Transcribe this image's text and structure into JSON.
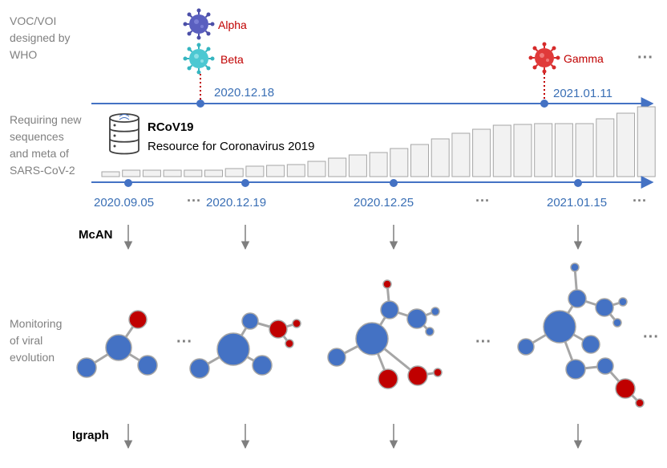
{
  "left_labels": {
    "voc": [
      "VOC/VOI",
      "designed by",
      "WHO"
    ],
    "requiring": [
      "Requiring new",
      "sequences",
      "and meta of",
      "SARS-CoV-2"
    ],
    "monitoring": [
      "Monitoring",
      "of viral",
      "evolution"
    ]
  },
  "variants": [
    {
      "name": "Alpha",
      "color": "#4b4fa8"
    },
    {
      "name": "Beta",
      "color": "#35b5c0"
    },
    {
      "name": "Gamma",
      "color": "#d62a2a"
    }
  ],
  "ellipsis": "···",
  "top_dates": [
    "2020.12.18",
    "2021.01.11"
  ],
  "bottom_dates": [
    "2020.09.05",
    "2020.12.19",
    "2020.12.25",
    "2021.01.15"
  ],
  "resource": {
    "name": "RCoV19",
    "full_name": "Resource for Coronavirus 2019",
    "icon": "database-icon"
  },
  "tools": {
    "mcan": "McAN",
    "igraph": "Igraph"
  },
  "colors": {
    "accent": "#4472c4",
    "node_blue": "#4472c4",
    "node_red": "#c00000",
    "edge": "#a6a6a6",
    "bar_fill": "#f2f2f2",
    "bar_stroke": "#a6a6a6"
  },
  "bar_levels": [
    6,
    8,
    8,
    8,
    8,
    8,
    10,
    13,
    14,
    15,
    19,
    23,
    27,
    30,
    35,
    40,
    47,
    54,
    59,
    64,
    65,
    66,
    66,
    66,
    72,
    79,
    87
  ]
}
